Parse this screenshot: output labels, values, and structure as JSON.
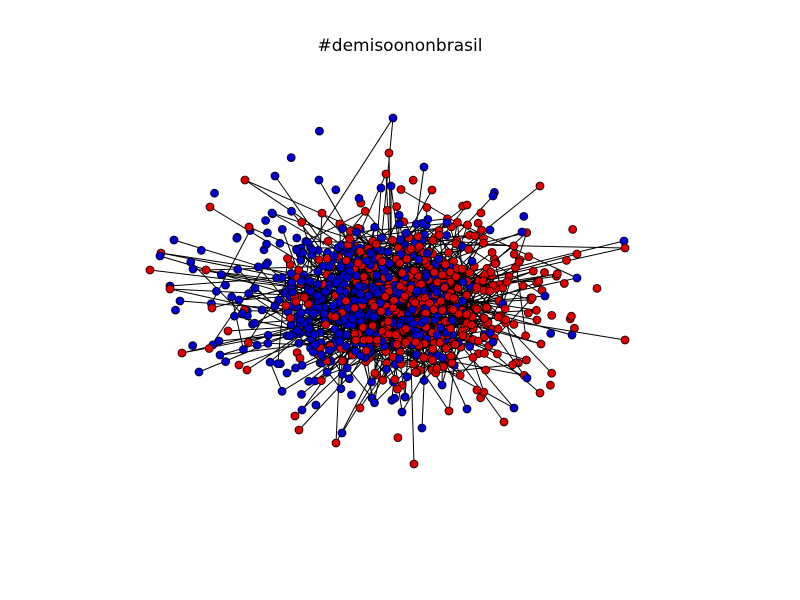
{
  "title": "#demisoononbrasil",
  "network": {
    "node_count": 900,
    "communities": [
      {
        "color": "#0000cc",
        "share": 0.5
      },
      {
        "color": "#dd0000",
        "share": 0.5
      }
    ],
    "edge_color": "#000000",
    "node_outline": "#000000"
  }
}
